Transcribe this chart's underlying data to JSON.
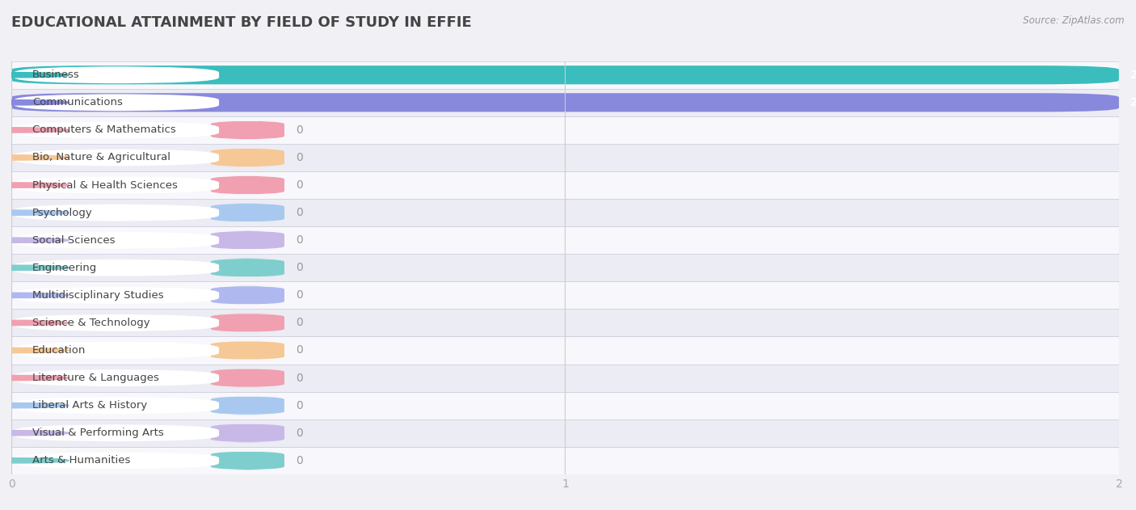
{
  "title": "EDUCATIONAL ATTAINMENT BY FIELD OF STUDY IN EFFIE",
  "source": "Source: ZipAtlas.com",
  "categories": [
    "Business",
    "Communications",
    "Computers & Mathematics",
    "Bio, Nature & Agricultural",
    "Physical & Health Sciences",
    "Psychology",
    "Social Sciences",
    "Engineering",
    "Multidisciplinary Studies",
    "Science & Technology",
    "Education",
    "Literature & Languages",
    "Liberal Arts & History",
    "Visual & Performing Arts",
    "Arts & Humanities"
  ],
  "values": [
    2,
    2,
    0,
    0,
    0,
    0,
    0,
    0,
    0,
    0,
    0,
    0,
    0,
    0,
    0
  ],
  "bar_colors": [
    "#3bbdbd",
    "#8888dd",
    "#f0a0b0",
    "#f5c896",
    "#f0a0b0",
    "#a8c8f0",
    "#c8b8e8",
    "#7ecece",
    "#b0b8f0",
    "#f0a0b0",
    "#f5c896",
    "#f0a0b0",
    "#a8c8f0",
    "#c8b8e8",
    "#7ecece"
  ],
  "row_colors": [
    "#f0f0f0",
    "#e8e8f0"
  ],
  "background_color": "#f0f0f5",
  "xlim": [
    0,
    2
  ],
  "xticks": [
    0,
    1,
    2
  ],
  "title_fontsize": 13,
  "label_fontsize": 9.5,
  "value_fontsize": 10
}
